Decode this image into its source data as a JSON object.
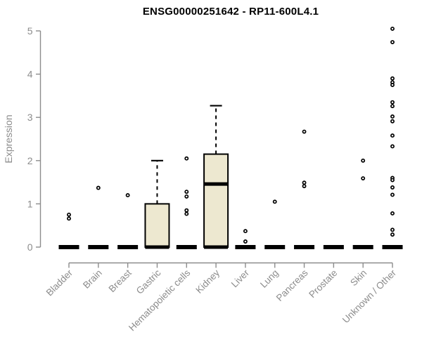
{
  "chart_data": {
    "type": "boxplot",
    "title": "ENSG00000251642 - RP11-600L4.1",
    "ylabel": "Expression",
    "xlabel": "",
    "ylim": [
      0,
      5
    ],
    "yticks": [
      0,
      1,
      2,
      3,
      4,
      5
    ],
    "grid": false,
    "legend": "none",
    "categories": [
      "Bladder",
      "Brain",
      "Breast",
      "Gastric",
      "Hematopoietic cells",
      "Kidney",
      "Liver",
      "Lung",
      "Pancreas",
      "Prostate",
      "Skin",
      "Unknown / Other"
    ],
    "boxes": [
      {
        "category": "Bladder",
        "median": 0,
        "q1": 0,
        "q3": 0,
        "whisker_low": 0,
        "whisker_high": 0,
        "outliers": [
          0.75,
          0.66
        ]
      },
      {
        "category": "Brain",
        "median": 0,
        "q1": 0,
        "q3": 0,
        "whisker_low": 0,
        "whisker_high": 0,
        "outliers": [
          1.37
        ]
      },
      {
        "category": "Breast",
        "median": 0,
        "q1": 0,
        "q3": 0,
        "whisker_low": 0,
        "whisker_high": 0,
        "outliers": [
          1.2
        ]
      },
      {
        "category": "Gastric",
        "median": 0,
        "q1": 0,
        "q3": 1.0,
        "whisker_low": 0,
        "whisker_high": 2.0,
        "outliers": []
      },
      {
        "category": "Hematopoietic cells",
        "median": 0,
        "q1": 0,
        "q3": 0,
        "whisker_low": 0,
        "whisker_high": 0,
        "outliers": [
          2.05,
          1.28,
          1.17,
          0.85,
          0.77
        ]
      },
      {
        "category": "Kidney",
        "median": 1.46,
        "q1": 0,
        "q3": 2.15,
        "whisker_low": 0,
        "whisker_high": 3.27,
        "outliers": []
      },
      {
        "category": "Liver",
        "median": 0,
        "q1": 0,
        "q3": 0,
        "whisker_low": 0,
        "whisker_high": 0,
        "outliers": [
          0.37,
          0.13
        ]
      },
      {
        "category": "Lung",
        "median": 0,
        "q1": 0,
        "q3": 0,
        "whisker_low": 0,
        "whisker_high": 0,
        "outliers": [
          1.05
        ]
      },
      {
        "category": "Pancreas",
        "median": 0,
        "q1": 0,
        "q3": 0,
        "whisker_low": 0,
        "whisker_high": 0,
        "outliers": [
          2.67,
          1.49,
          1.41
        ]
      },
      {
        "category": "Prostate",
        "median": 0,
        "q1": 0,
        "q3": 0,
        "whisker_low": 0,
        "whisker_high": 0,
        "outliers": []
      },
      {
        "category": "Skin",
        "median": 0,
        "q1": 0,
        "q3": 0,
        "whisker_low": 0,
        "whisker_high": 0,
        "outliers": [
          2.0,
          1.59
        ]
      },
      {
        "category": "Unknown / Other",
        "median": 0,
        "q1": 0,
        "q3": 0,
        "whisker_low": 0,
        "whisker_high": 0,
        "outliers": [
          5.05,
          4.74,
          3.9,
          3.81,
          3.75,
          3.35,
          3.26,
          3.02,
          2.91,
          2.58,
          2.33,
          1.6,
          1.55,
          1.38,
          1.21,
          0.78,
          0.4,
          0.29
        ]
      }
    ],
    "colors": {
      "box_fill": "#EDE8D0",
      "box_line": "#000000",
      "axis": "#8c8c8c",
      "title": "#000000",
      "background": "#ffffff"
    }
  }
}
